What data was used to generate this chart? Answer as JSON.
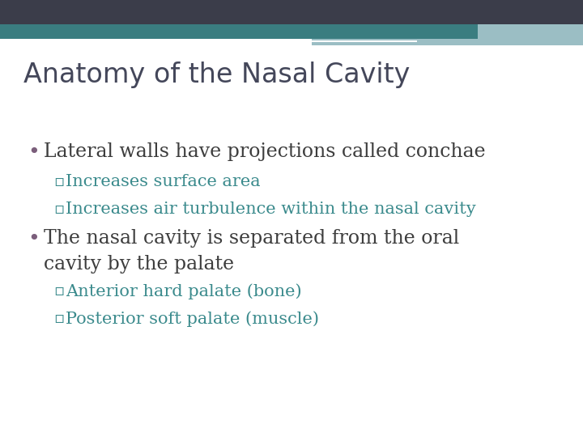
{
  "title": "Anatomy of the Nasal Cavity",
  "title_color": "#44475a",
  "title_fontsize": 24,
  "background_color": "#ffffff",
  "header_dark_color": "#3b3d4a",
  "header_teal_color": "#3a7d80",
  "header_light_color": "#9bbec4",
  "header_lighter_color": "#c5d8dc",
  "bullet_color": "#7b5e7b",
  "sub_color": "#3a8a8c",
  "text_color": "#3d3d3d",
  "bullet1": "Lateral walls have projections called conchae",
  "bullet1_sub": [
    "Increases surface area",
    "Increases air turbulence within the nasal cavity"
  ],
  "bullet2_line1": "The nasal cavity is separated from the oral",
  "bullet2_line2": "cavity by the palate",
  "bullet2_sub": [
    "Anterior hard palate (bone)",
    "Posterior soft palate (muscle)"
  ],
  "bullet_fontsize": 17,
  "sub_fontsize": 15
}
